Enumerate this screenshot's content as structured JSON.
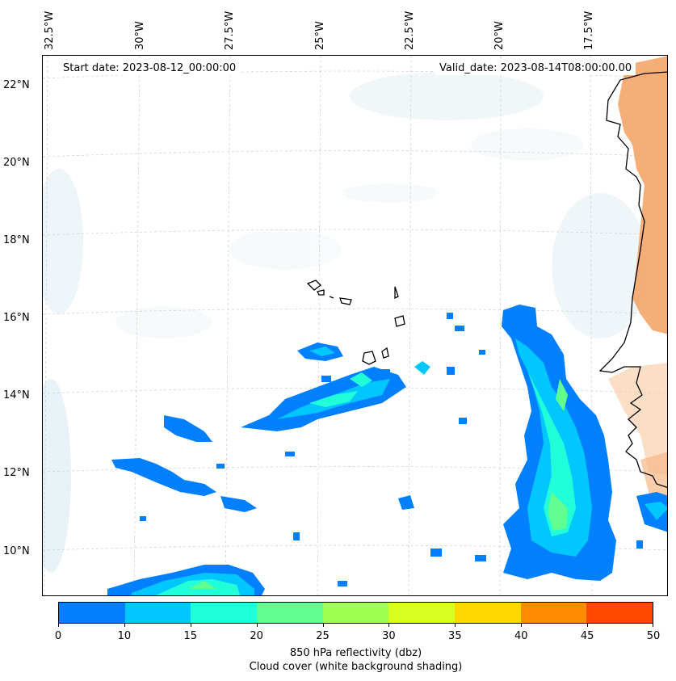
{
  "map": {
    "start_date": "Start date: 2023-08-12_00:00:00",
    "valid_date": "Valid_date: 2023-08-14T08:00:00.00",
    "lon_labels": [
      "32.5°W",
      "30°W",
      "27.5°W",
      "25°W",
      "22.5°W",
      "20°W",
      "17.5°W"
    ],
    "lat_labels": [
      "22°N",
      "20°N",
      "18°N",
      "16°N",
      "14°N",
      "12°N",
      "10°N"
    ]
  },
  "colorbar": {
    "ticks": [
      "0",
      "10",
      "15",
      "20",
      "25",
      "30",
      "35",
      "40",
      "45",
      "50"
    ],
    "colors": [
      "#0080ff",
      "#00c8ff",
      "#20ffd8",
      "#60ff90",
      "#a0ff50",
      "#d8ff20",
      "#ffd800",
      "#ff8c00",
      "#ff4800"
    ],
    "label_line1": "850 hPa reflectivity (dbz)",
    "label_line2": "Cloud cover (white background shading)"
  },
  "land_color": "#f4a060"
}
